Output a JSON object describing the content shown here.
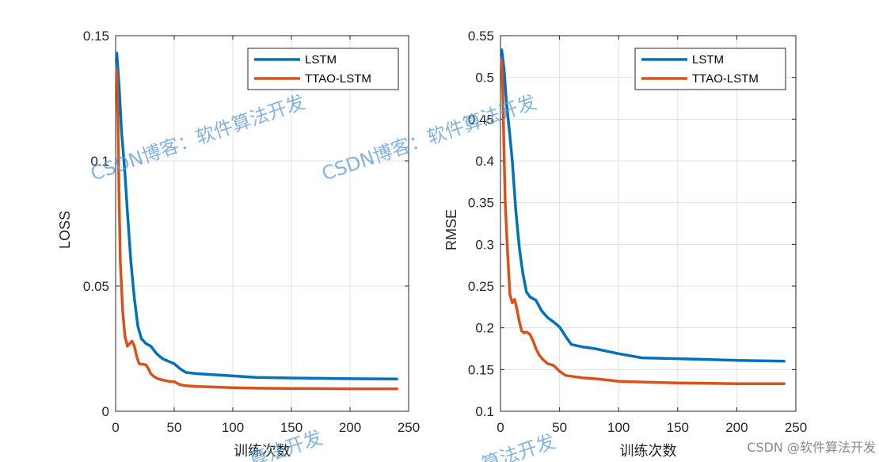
{
  "chart_data": [
    {
      "type": "line",
      "xlabel": "训练次数",
      "ylabel": "LOSS",
      "xlim": [
        0,
        250
      ],
      "ylim": [
        0,
        0.15
      ],
      "xticks": [
        0,
        50,
        100,
        150,
        200,
        250
      ],
      "yticks": [
        0,
        0.05,
        0.1,
        0.15
      ],
      "ytick_labels": [
        "0",
        "0.05",
        "0.1",
        "0.15"
      ],
      "grid": true,
      "legend_position": "top-right",
      "series": [
        {
          "name": "LSTM",
          "color": "#0072bd",
          "x": [
            1,
            3,
            5,
            8,
            10,
            13,
            16,
            19,
            22,
            26,
            30,
            35,
            40,
            45,
            50,
            55,
            60,
            70,
            80,
            100,
            120,
            150,
            200,
            240
          ],
          "y": [
            0.143,
            0.13,
            0.112,
            0.095,
            0.08,
            0.06,
            0.045,
            0.034,
            0.029,
            0.027,
            0.026,
            0.023,
            0.021,
            0.02,
            0.019,
            0.017,
            0.0155,
            0.015,
            0.0147,
            0.0141,
            0.0135,
            0.0133,
            0.013,
            0.0129
          ]
        },
        {
          "name": "TTAO-LSTM",
          "color": "#d95319",
          "x": [
            1,
            2,
            3,
            4,
            6,
            8,
            10,
            12,
            14,
            16,
            18,
            20,
            23,
            26,
            28,
            30,
            33,
            36,
            40,
            45,
            50,
            55,
            60,
            70,
            100,
            120,
            150,
            200,
            240
          ],
          "y": [
            0.136,
            0.115,
            0.085,
            0.06,
            0.04,
            0.03,
            0.026,
            0.027,
            0.028,
            0.026,
            0.022,
            0.019,
            0.0188,
            0.0185,
            0.017,
            0.015,
            0.0138,
            0.013,
            0.0125,
            0.012,
            0.0118,
            0.0106,
            0.0102,
            0.0099,
            0.0094,
            0.0092,
            0.0091,
            0.009,
            0.009
          ]
        }
      ]
    },
    {
      "type": "line",
      "xlabel": "训练次数",
      "ylabel": "RMSE",
      "xlim": [
        0,
        250
      ],
      "ylim": [
        0.1,
        0.55
      ],
      "xticks": [
        0,
        50,
        100,
        150,
        200,
        250
      ],
      "yticks": [
        0.1,
        0.15,
        0.2,
        0.25,
        0.3,
        0.35,
        0.4,
        0.45,
        0.5,
        0.55
      ],
      "ytick_labels": [
        "0.1",
        "0.15",
        "0.2",
        "0.25",
        "0.3",
        "0.35",
        "0.4",
        "0.45",
        "0.5",
        "0.55"
      ],
      "grid": true,
      "legend_position": "top-right",
      "series": [
        {
          "name": "LSTM",
          "color": "#0072bd",
          "x": [
            1,
            3,
            5,
            8,
            10,
            13,
            16,
            19,
            22,
            25,
            30,
            35,
            40,
            45,
            50,
            55,
            60,
            70,
            80,
            90,
            100,
            120,
            150,
            200,
            240
          ],
          "y": [
            0.533,
            0.51,
            0.47,
            0.43,
            0.4,
            0.34,
            0.295,
            0.265,
            0.243,
            0.237,
            0.233,
            0.22,
            0.212,
            0.207,
            0.201,
            0.19,
            0.18,
            0.177,
            0.175,
            0.172,
            0.169,
            0.164,
            0.163,
            0.161,
            0.16
          ]
        },
        {
          "name": "TTAO-LSTM",
          "color": "#d95319",
          "x": [
            1,
            2,
            3,
            4,
            6,
            8,
            10,
            12,
            14,
            16,
            18,
            20,
            22,
            25,
            28,
            30,
            33,
            36,
            40,
            45,
            50,
            55,
            60,
            70,
            80,
            100,
            120,
            150,
            200,
            240
          ],
          "y": [
            0.52,
            0.48,
            0.41,
            0.35,
            0.29,
            0.24,
            0.23,
            0.234,
            0.222,
            0.207,
            0.196,
            0.194,
            0.195,
            0.192,
            0.183,
            0.175,
            0.167,
            0.162,
            0.157,
            0.155,
            0.148,
            0.143,
            0.142,
            0.14,
            0.139,
            0.136,
            0.135,
            0.134,
            0.133,
            0.133
          ]
        }
      ]
    }
  ],
  "watermarks": [
    "CSDN博客：软件算法开发",
    "CSDN博客：软件算法开发",
    "算法开发",
    "算法开发"
  ],
  "credit": "CSDN @软件算法开发"
}
